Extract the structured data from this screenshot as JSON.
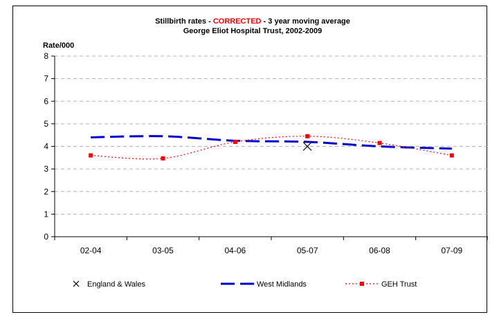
{
  "chart_data": {
    "type": "line",
    "title_prefix": "Stillbirth rates - ",
    "title_highlight": "CORRECTED",
    "title_suffix": " - 3 year moving average",
    "subtitle": "George Eliot Hospital Trust, 2002-2009",
    "ylabel": "Rate/000",
    "xlabel": "",
    "ylim": [
      0,
      8
    ],
    "yticks": [
      "0",
      "1",
      "2",
      "3",
      "4",
      "5",
      "6",
      "7",
      "8"
    ],
    "categories": [
      "02-04",
      "03-05",
      "04-06",
      "05-07",
      "06-08",
      "07-09"
    ],
    "grid": true,
    "legend_position": "bottom",
    "series": [
      {
        "name": "England & Wales",
        "style": "marker-x",
        "color": "#000000",
        "points": [
          {
            "x": "05-07",
            "y": 4.0
          }
        ]
      },
      {
        "name": "West Midlands",
        "style": "dashed",
        "color": "#0000cc",
        "values": [
          4.4,
          4.45,
          4.25,
          4.2,
          4.0,
          3.9
        ]
      },
      {
        "name": "GEH Trust",
        "style": "dotted-square",
        "color": "#ff0000",
        "values": [
          3.6,
          3.47,
          4.2,
          4.45,
          4.15,
          3.6
        ]
      }
    ],
    "highlight_color": "#ff0000"
  }
}
